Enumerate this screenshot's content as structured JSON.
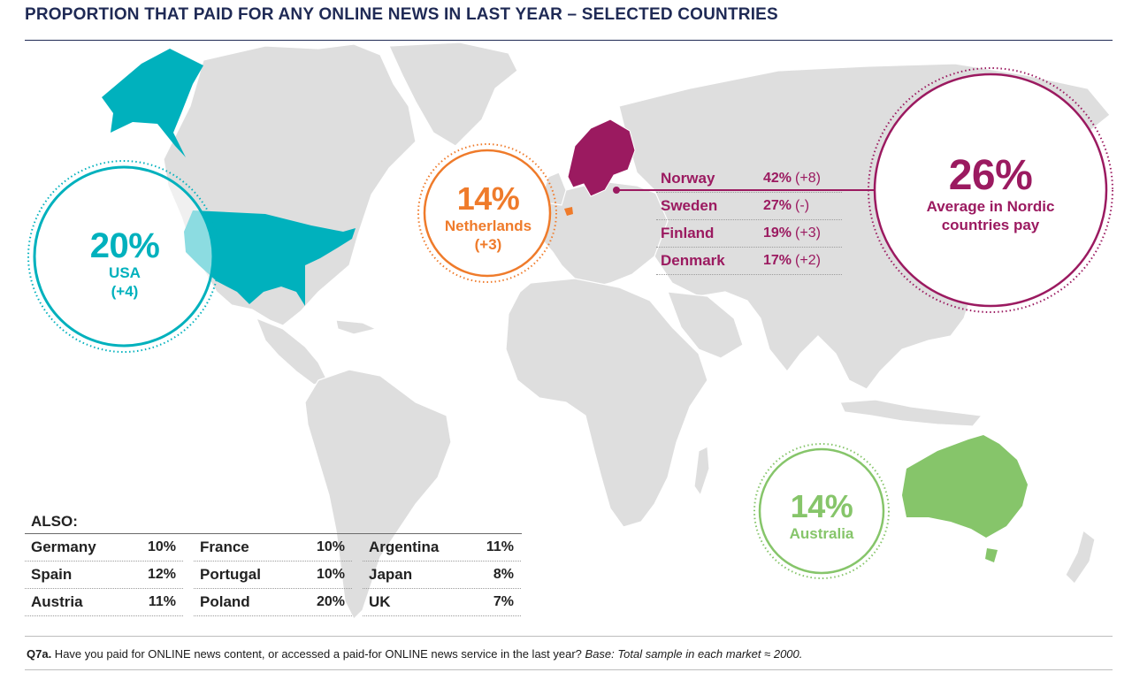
{
  "title": "PROPORTION THAT PAID FOR ANY ONLINE NEWS IN LAST YEAR – SELECTED COUNTRIES",
  "colors": {
    "usa": "#00b1bd",
    "netherlands": "#ef7b2b",
    "nordic": "#9b1a60",
    "australia": "#86c56a",
    "land": "#dedede"
  },
  "highlights": {
    "usa": {
      "value": "20%",
      "country": "USA",
      "change": "(+4)"
    },
    "netherlands": {
      "value": "14%",
      "country": "Netherlands",
      "change": "(+3)"
    },
    "australia": {
      "value": "14%",
      "country": "Australia"
    },
    "nordic": {
      "value": "26%",
      "label_line1": "Average in Nordic",
      "label_line2": "countries pay"
    }
  },
  "nordic_rows": [
    {
      "country": "Norway",
      "value": "42%",
      "change": "(+8)"
    },
    {
      "country": "Sweden",
      "value": "27%",
      "change": "(-)"
    },
    {
      "country": "Finland",
      "value": "19%",
      "change": "(+3)"
    },
    {
      "country": "Denmark",
      "value": "17%",
      "change": "(+2)"
    }
  ],
  "also": {
    "title": "ALSO:",
    "columns": [
      [
        {
          "country": "Germany",
          "value": "10%"
        },
        {
          "country": "Spain",
          "value": "12%"
        },
        {
          "country": "Austria",
          "value": "11%"
        }
      ],
      [
        {
          "country": "France",
          "value": "10%"
        },
        {
          "country": "Portugal",
          "value": "10%"
        },
        {
          "country": "Poland",
          "value": "20%"
        }
      ],
      [
        {
          "country": "Argentina",
          "value": "11%"
        },
        {
          "country": "Japan",
          "value": "8%"
        },
        {
          "country": "UK",
          "value": "7%"
        }
      ]
    ]
  },
  "footnote": {
    "q": "Q7a.",
    "text": " Have you paid for ONLINE news content, or accessed a paid-for ONLINE news service in the last year? ",
    "base": "Base: Total sample in each market ≈ 2000."
  }
}
